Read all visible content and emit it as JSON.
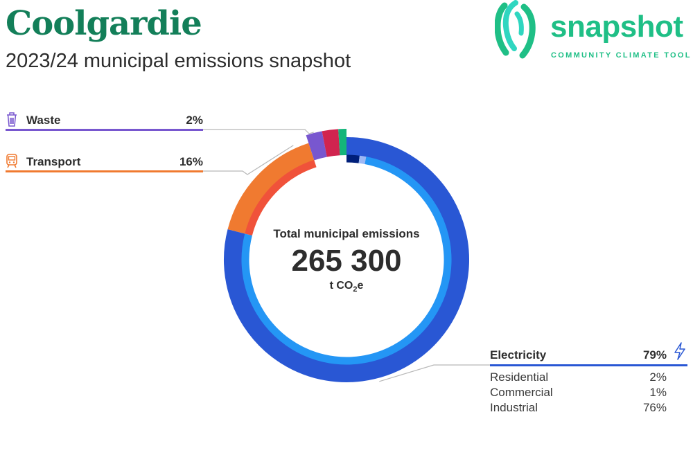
{
  "header": {
    "title": "Coolgardie",
    "subtitle": "2023/24 municipal emissions snapshot"
  },
  "logo": {
    "word": "snapshot",
    "tagline": "COMMUNITY CLIMATE TOOL"
  },
  "colors": {
    "title": "#137f59",
    "logo_green": "#1fbf86",
    "logo_teal": "#2fd6c0",
    "waste": "#7857cf",
    "transport": "#f07a30",
    "electricity": "#2957d4",
    "leader_line": "#b8b8b8"
  },
  "icons": {
    "waste": "trash-bin-icon",
    "transport": "train-icon",
    "electricity": "lightning-bolt-icon"
  },
  "center": {
    "label": "Total municipal emissions",
    "value": "265 300",
    "unit_prefix": "t CO",
    "unit_sub": "2",
    "unit_suffix": "e"
  },
  "chart_data": {
    "type": "pie",
    "variant": "donut",
    "total": "265 300",
    "unit": "t CO2e",
    "categories": [
      {
        "name": "Waste",
        "percent": "2%",
        "value": 2,
        "color": "#7857cf",
        "outer_segments": [
          {
            "value": 2,
            "color": "#7857cf"
          }
        ]
      },
      {
        "name": "Transport",
        "percent": "16%",
        "value": 16,
        "color": "#f07a30",
        "inner_segments": [
          {
            "value": 16,
            "color": "#f0523a"
          }
        ]
      },
      {
        "name": "Electricity",
        "percent": "79%",
        "value": 79,
        "color": "#2957d4",
        "subcategories": [
          {
            "name": "Residential",
            "percent": "2%",
            "value": 2,
            "color": "#001f7a"
          },
          {
            "name": "Commercial",
            "percent": "1%",
            "value": 1,
            "color": "#9db8f5"
          },
          {
            "name": "Industrial",
            "percent": "76%",
            "value": 76,
            "color": "#2496f5"
          }
        ]
      }
    ],
    "other_segments": [
      {
        "value": 2,
        "color": "#d1244f"
      },
      {
        "value": 1,
        "color": "#14b57a"
      }
    ]
  }
}
